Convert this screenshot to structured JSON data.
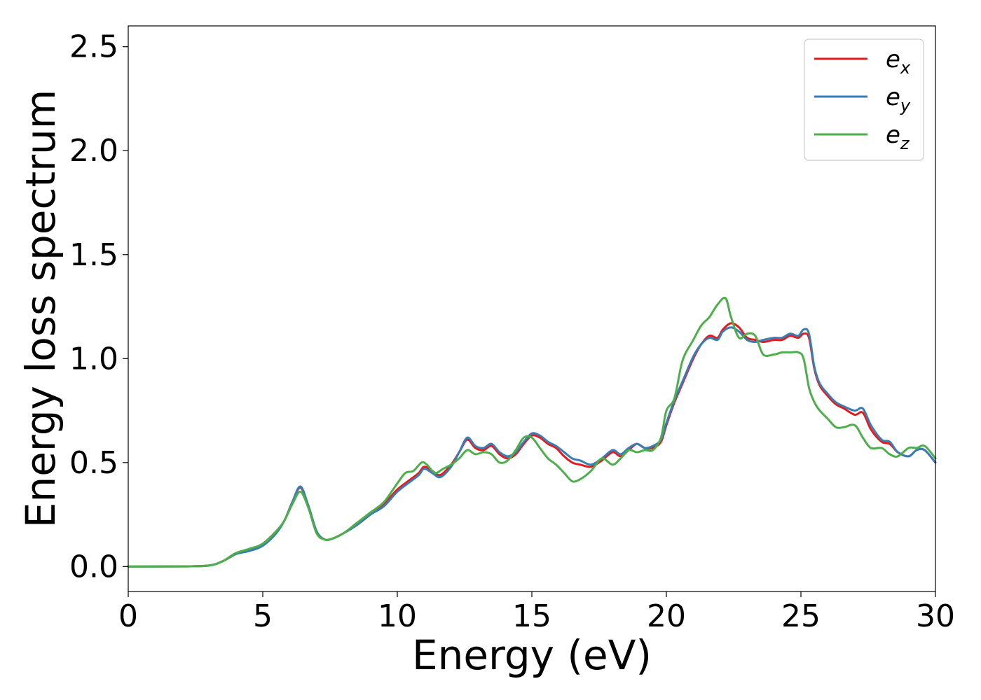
{
  "chart_data": {
    "type": "line",
    "xlabel": "Energy (eV)",
    "ylabel": "Energy loss spectrum",
    "xlim": [
      0,
      30
    ],
    "ylim": [
      -0.12,
      2.6
    ],
    "xticks": [
      0,
      5,
      10,
      15,
      20,
      25,
      30
    ],
    "yticks": [
      0.0,
      0.5,
      1.0,
      1.5,
      2.0,
      2.5
    ],
    "xtick_labels": [
      "0",
      "5",
      "10",
      "15",
      "20",
      "25",
      "30"
    ],
    "ytick_labels": [
      "0.0",
      "0.5",
      "1.0",
      "1.5",
      "2.0",
      "2.5"
    ],
    "grid": false,
    "legend_position": "top-right",
    "series": [
      {
        "name": "e_x",
        "label_base": "e",
        "label_sub": "x",
        "color": "#e41a1c",
        "x": [
          0,
          2,
          3,
          3.5,
          4,
          4.5,
          5,
          5.5,
          5.8,
          6.1,
          6.4,
          6.7,
          7,
          7.3,
          7.6,
          8,
          8.5,
          9,
          9.5,
          10,
          10.5,
          10.8,
          11,
          11.3,
          11.6,
          12,
          12.3,
          12.6,
          12.9,
          13.2,
          13.5,
          13.8,
          14.1,
          14.4,
          14.7,
          15,
          15.3,
          15.6,
          15.9,
          16.2,
          16.5,
          16.8,
          17.2,
          17.6,
          18,
          18.3,
          18.6,
          18.9,
          19.2,
          19.5,
          19.8,
          20,
          20.3,
          20.6,
          21,
          21.3,
          21.6,
          21.9,
          22.1,
          22.4,
          22.7,
          23,
          23.3,
          23.6,
          24,
          24.3,
          24.6,
          24.9,
          25.1,
          25.3,
          25.5,
          25.7,
          26,
          26.3,
          26.6,
          27,
          27.3,
          27.6,
          28,
          28.3,
          28.6,
          29,
          29.3,
          29.6,
          30
        ],
        "y": [
          0,
          0.001,
          0.005,
          0.025,
          0.06,
          0.08,
          0.11,
          0.17,
          0.22,
          0.31,
          0.38,
          0.29,
          0.17,
          0.13,
          0.135,
          0.16,
          0.2,
          0.25,
          0.3,
          0.37,
          0.42,
          0.45,
          0.48,
          0.46,
          0.44,
          0.49,
          0.55,
          0.61,
          0.57,
          0.56,
          0.58,
          0.54,
          0.52,
          0.54,
          0.59,
          0.63,
          0.62,
          0.59,
          0.57,
          0.53,
          0.5,
          0.49,
          0.48,
          0.51,
          0.55,
          0.53,
          0.56,
          0.59,
          0.57,
          0.57,
          0.6,
          0.68,
          0.79,
          0.88,
          1.0,
          1.07,
          1.11,
          1.1,
          1.14,
          1.17,
          1.15,
          1.1,
          1.09,
          1.08,
          1.09,
          1.09,
          1.11,
          1.1,
          1.12,
          1.1,
          0.95,
          0.87,
          0.82,
          0.78,
          0.76,
          0.73,
          0.74,
          0.66,
          0.6,
          0.59,
          0.55,
          0.53,
          0.56,
          0.56,
          0.5
        ]
      },
      {
        "name": "e_y",
        "label_base": "e",
        "label_sub": "y",
        "color": "#377eb8",
        "x": [
          0,
          2,
          3,
          3.5,
          4,
          4.5,
          5,
          5.5,
          5.8,
          6.1,
          6.4,
          6.7,
          7,
          7.3,
          7.6,
          8,
          8.5,
          9,
          9.5,
          10,
          10.5,
          10.8,
          11,
          11.3,
          11.6,
          12,
          12.3,
          12.6,
          12.9,
          13.2,
          13.5,
          13.8,
          14.1,
          14.4,
          14.7,
          15,
          15.3,
          15.6,
          15.9,
          16.2,
          16.5,
          16.8,
          17.2,
          17.6,
          18,
          18.3,
          18.6,
          18.9,
          19.2,
          19.5,
          19.8,
          20,
          20.3,
          20.6,
          21,
          21.3,
          21.6,
          21.9,
          22.1,
          22.4,
          22.7,
          23,
          23.3,
          23.6,
          24,
          24.3,
          24.6,
          24.9,
          25.1,
          25.3,
          25.5,
          25.7,
          26,
          26.3,
          26.6,
          27,
          27.3,
          27.6,
          28,
          28.3,
          28.6,
          29,
          29.3,
          29.6,
          30
        ],
        "y": [
          0,
          0.001,
          0.005,
          0.025,
          0.06,
          0.075,
          0.1,
          0.16,
          0.22,
          0.31,
          0.385,
          0.29,
          0.17,
          0.13,
          0.135,
          0.16,
          0.2,
          0.25,
          0.29,
          0.36,
          0.41,
          0.44,
          0.47,
          0.45,
          0.43,
          0.48,
          0.55,
          0.62,
          0.58,
          0.57,
          0.59,
          0.55,
          0.53,
          0.55,
          0.6,
          0.64,
          0.63,
          0.6,
          0.58,
          0.55,
          0.52,
          0.51,
          0.49,
          0.52,
          0.56,
          0.54,
          0.57,
          0.59,
          0.57,
          0.58,
          0.61,
          0.69,
          0.8,
          0.89,
          1.01,
          1.07,
          1.1,
          1.09,
          1.13,
          1.15,
          1.13,
          1.09,
          1.08,
          1.09,
          1.1,
          1.1,
          1.12,
          1.11,
          1.14,
          1.12,
          0.96,
          0.88,
          0.83,
          0.79,
          0.77,
          0.75,
          0.76,
          0.68,
          0.61,
          0.6,
          0.55,
          0.53,
          0.56,
          0.56,
          0.5
        ]
      },
      {
        "name": "e_z",
        "label_base": "e",
        "label_sub": "z",
        "color": "#4daf4a",
        "x": [
          0,
          2,
          3,
          3.5,
          4,
          4.5,
          5,
          5.5,
          5.8,
          6.1,
          6.4,
          6.7,
          7,
          7.3,
          7.6,
          8,
          8.5,
          9,
          9.5,
          10,
          10.3,
          10.6,
          10.9,
          11.1,
          11.4,
          11.7,
          12,
          12.3,
          12.6,
          12.9,
          13.2,
          13.5,
          13.8,
          14.1,
          14.4,
          14.7,
          15,
          15.3,
          15.6,
          15.9,
          16.2,
          16.5,
          16.8,
          17.2,
          17.6,
          18,
          18.3,
          18.6,
          18.9,
          19.2,
          19.5,
          19.8,
          20,
          20.3,
          20.6,
          21,
          21.3,
          21.6,
          21.9,
          22.2,
          22.4,
          22.7,
          23,
          23.3,
          23.6,
          24,
          24.3,
          24.6,
          24.9,
          25.1,
          25.3,
          25.5,
          25.7,
          26,
          26.3,
          26.6,
          27,
          27.3,
          27.6,
          28,
          28.3,
          28.6,
          29,
          29.3,
          29.6,
          30
        ],
        "y": [
          0,
          0.001,
          0.005,
          0.025,
          0.065,
          0.085,
          0.11,
          0.17,
          0.22,
          0.3,
          0.36,
          0.28,
          0.16,
          0.13,
          0.135,
          0.16,
          0.21,
          0.26,
          0.31,
          0.4,
          0.45,
          0.46,
          0.5,
          0.49,
          0.45,
          0.47,
          0.49,
          0.52,
          0.56,
          0.54,
          0.55,
          0.54,
          0.5,
          0.51,
          0.56,
          0.62,
          0.62,
          0.57,
          0.52,
          0.49,
          0.45,
          0.41,
          0.42,
          0.46,
          0.52,
          0.49,
          0.52,
          0.56,
          0.55,
          0.56,
          0.56,
          0.62,
          0.75,
          0.81,
          0.99,
          1.09,
          1.16,
          1.2,
          1.26,
          1.29,
          1.2,
          1.1,
          1.12,
          1.11,
          1.02,
          1.02,
          1.03,
          1.03,
          1.03,
          1.0,
          0.86,
          0.79,
          0.75,
          0.71,
          0.67,
          0.67,
          0.68,
          0.62,
          0.57,
          0.57,
          0.54,
          0.53,
          0.57,
          0.57,
          0.58,
          0.52
        ]
      }
    ]
  }
}
